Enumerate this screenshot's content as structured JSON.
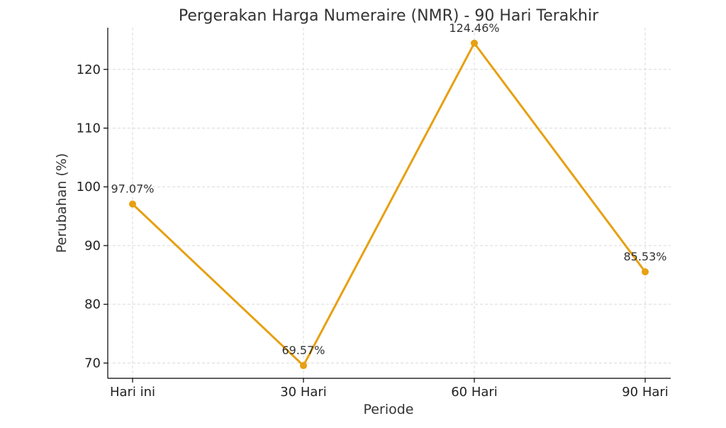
{
  "chart_data": {
    "type": "line",
    "title": "Pergerakan Harga Numeraire (NMR) - 90 Hari Terakhir",
    "xlabel": "Periode",
    "ylabel": "Perubahan (%)",
    "categories": [
      "Hari ini",
      "30 Hari",
      "60 Hari",
      "90 Hari"
    ],
    "values": [
      97.07,
      69.57,
      124.46,
      85.53
    ],
    "data_labels": [
      "97.07%",
      "69.57%",
      "124.46%",
      "85.53%"
    ],
    "yticks": [
      70,
      80,
      90,
      100,
      110,
      120
    ],
    "ylim": [
      67.4,
      127.1
    ],
    "grid": true,
    "color": "#E6A012"
  }
}
